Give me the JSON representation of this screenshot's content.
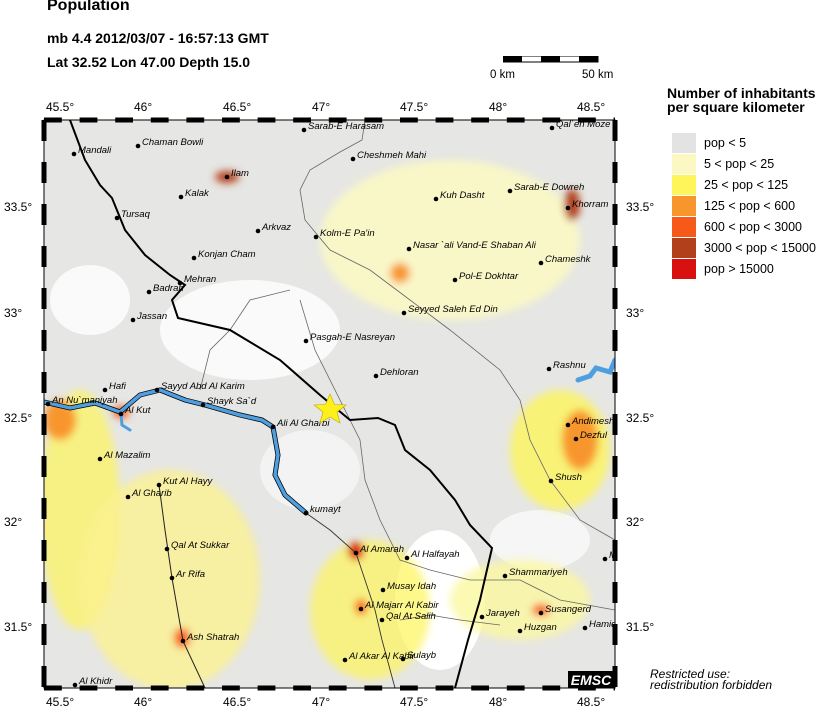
{
  "header": {
    "title": "Population",
    "event_line": "mb 4.4  2012/03/07 - 16:57:13 GMT",
    "location_line": "Lat 32.52    Lon  47.00    Depth  15.0"
  },
  "scale_bar": {
    "start_label": "0 km",
    "end_label": "50 km"
  },
  "axes": {
    "lon_ticks": [
      "45.5°",
      "46°",
      "46.5°",
      "47°",
      "47.5°",
      "48°",
      "48.5°"
    ],
    "lat_ticks": [
      "33.5°",
      "33°",
      "32.5°",
      "32°",
      "31.5°"
    ]
  },
  "legend": {
    "title_line1": "Number of inhabitants",
    "title_line2": "per square kilometer",
    "items": [
      {
        "label": "pop < 5",
        "color": "#e3e3e3"
      },
      {
        "label": "5 < pop < 25",
        "color": "#fbf8c4"
      },
      {
        "label": "25 < pop < 125",
        "color": "#fdf55a"
      },
      {
        "label": "125 < pop < 600",
        "color": "#f8962e"
      },
      {
        "label": "600 < pop < 3000",
        "color": "#f75a18"
      },
      {
        "label": "3000 < pop < 15000",
        "color": "#b2401a"
      },
      {
        "label": "pop > 15000",
        "color": "#d81010"
      }
    ]
  },
  "epicenter": {
    "lat": 32.52,
    "lon": 47.0,
    "color": "#ffef1a"
  },
  "cities": [
    "Mandali",
    "Chaman Bowli",
    "Ilam",
    "Kalak",
    "Tursaq",
    "Arkvaz",
    "Konjan Cham",
    "Mehran",
    "Badrah",
    "Jassan",
    "Sarab-E Harasam",
    "Cheshmeh Mahi",
    "Kuh Dasht",
    "Sarab-E Dowreh",
    "Khorram",
    "Qal`en Moze",
    "Kolm-E Pa'in",
    "Nasar `ali Vand-E Shaban Ali",
    "Chameshk",
    "Pol-E Dokhtar",
    "Seyyed Saleh Ed Din",
    "Pasgah-E Nasreyan",
    "Dehloran",
    "Rashnu",
    "Andimesh",
    "Dezful",
    "Shush",
    "An Nu`maniyah",
    "Hafi",
    "Al Kut",
    "Sayyd Abd Al Karim",
    "Shayk Sa`d",
    "Ali Al Gharbi",
    "Al Mazalim",
    "Kut Al Hayy",
    "Al Gharib",
    "kumayt",
    "Qal At Sukkar",
    "Ar Rifa",
    "Ash Shatrah",
    "Al Khidr",
    "Al Amarah",
    "Al Halfayah",
    "Musay Idah",
    "Al Majarr Al Kabir",
    "Qal At Salih",
    "Al Akar Al Kabir",
    "Sulayb",
    "Jarayeh",
    "Shammariyeh",
    "Susangerd",
    "Huzgan",
    "Hamid",
    "M"
  ],
  "logo": "EMSC",
  "notice": {
    "line1": "Restricted use:",
    "line2": "redistribution forbidden"
  }
}
